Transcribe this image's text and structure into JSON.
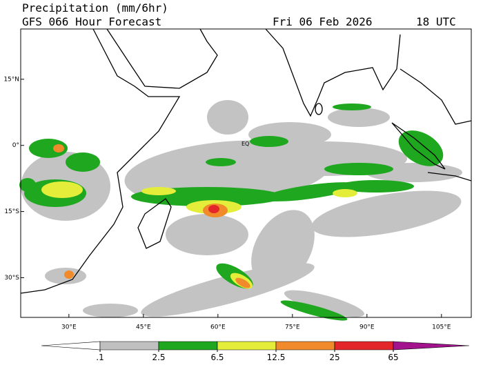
{
  "header": {
    "title": "Precipitation (mm/6hr)",
    "subtitle": "GFS 066 Hour Forecast",
    "date": "Fri 06 Feb 2026",
    "time": "18 UTC"
  },
  "map": {
    "lonlim": [
      20.3,
      111
    ],
    "latlim": [
      -39,
      26.4
    ],
    "lat_ticks": [
      {
        "value": 15,
        "label": "15°N"
      },
      {
        "value": 0,
        "label": "0°"
      },
      {
        "value": -15,
        "label": "15°S"
      },
      {
        "value": -30,
        "label": "30°S"
      }
    ],
    "lon_ticks": [
      {
        "value": 30,
        "label": "30°E"
      },
      {
        "value": 45,
        "label": "45°E"
      },
      {
        "value": 60,
        "label": "60°E"
      },
      {
        "value": 75,
        "label": "75°E"
      },
      {
        "value": 90,
        "label": "90°E"
      },
      {
        "value": 105,
        "label": "105°E"
      }
    ],
    "equator_label": "EQ"
  },
  "colorbar": {
    "ticks": [
      {
        "value": 0.1,
        "label": ".1"
      },
      2.5,
      6.5,
      12.5,
      25,
      65
    ],
    "colors": [
      "#ffffff",
      "#c0c0c0",
      "#1fa81f",
      "#e4ee3a",
      "#f08a2a",
      "#e3262a",
      "#a3138e"
    ]
  }
}
